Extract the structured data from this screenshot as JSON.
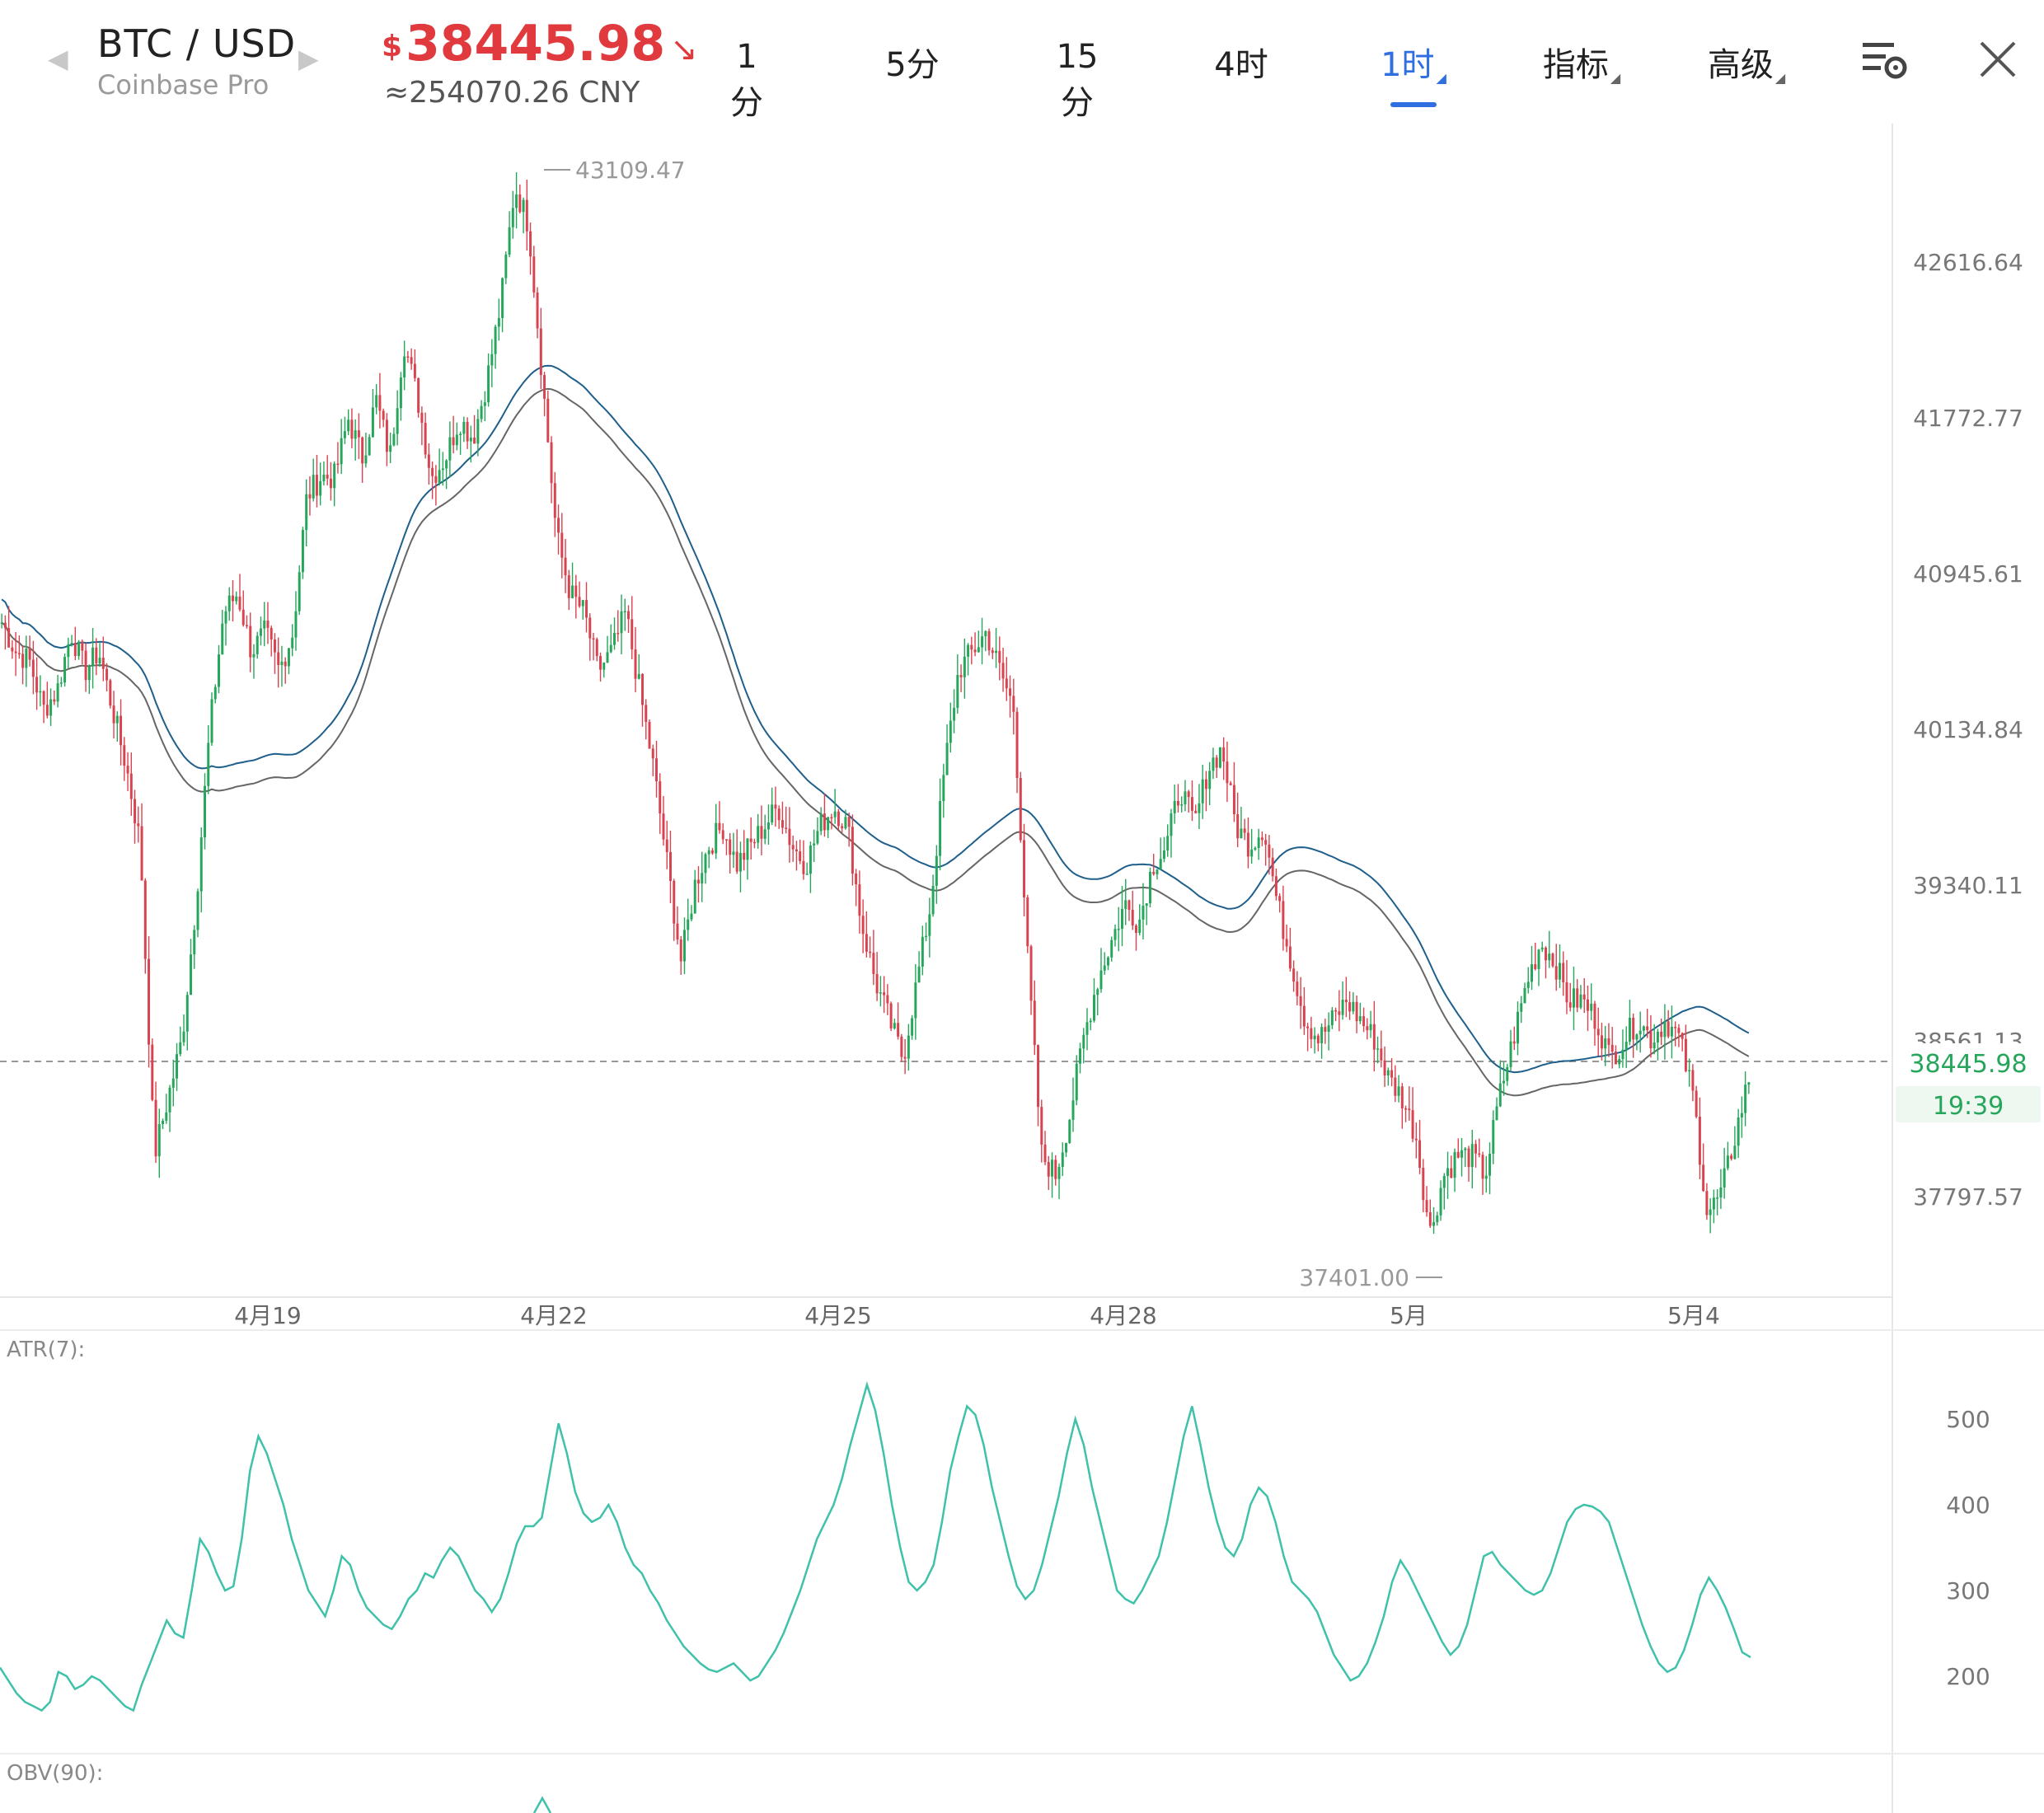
{
  "header": {
    "pair": "BTC / USD",
    "exchange": "Coinbase Pro",
    "price": "38445.98",
    "currency_symbol": "$",
    "price_direction": "down",
    "price_color": "#e0393e",
    "cny": "≈254070.26 CNY",
    "prev_icon": "left-triangle-icon",
    "next_icon": "right-triangle-icon"
  },
  "tabs": [
    {
      "label": "1分",
      "active": false,
      "dropdown": false
    },
    {
      "label": "5分",
      "active": false,
      "dropdown": false
    },
    {
      "label": "15分",
      "active": false,
      "dropdown": false
    },
    {
      "label": "4时",
      "active": false,
      "dropdown": false
    },
    {
      "label": "1时",
      "active": true,
      "dropdown": true
    },
    {
      "label": "指标",
      "active": false,
      "dropdown": true
    },
    {
      "label": "高级",
      "active": false,
      "dropdown": true
    }
  ],
  "toolbar": {
    "settings_icon": "chart-settings-icon",
    "close_icon": "close-icon"
  },
  "chart_data": {
    "type": "candlestick",
    "interval": "1时",
    "y_ticks": [
      "42616.64",
      "41772.77",
      "40945.61",
      "40134.84",
      "39340.11",
      "38561.13",
      "37797.57"
    ],
    "x_ticks": [
      "4月19",
      "4月22",
      "4月25",
      "4月28",
      "5月",
      "5月4"
    ],
    "high_label": "43109.47",
    "low_label": "37401.00",
    "last_price": "38445.98",
    "countdown": "19:39",
    "up_color": "#26a65b",
    "down_color": "#d8434f",
    "ma_colors": [
      "#1f5f8b",
      "#666666"
    ],
    "close_path": [
      40750,
      40600,
      40550,
      40300,
      40400,
      40700,
      40500,
      40600,
      40300,
      40000,
      39600,
      38000,
      38300,
      38600,
      39300,
      40200,
      40800,
      40900,
      40600,
      40700,
      40500,
      40700,
      41400,
      41500,
      41500,
      41800,
      41600,
      41900,
      41600,
      42200,
      41900,
      41500,
      41600,
      41800,
      41700,
      42000,
      42400,
      43000,
      42800,
      42000,
      41200,
      40900,
      40800,
      40500,
      40600,
      40800,
      40400,
      40000,
      39500,
      39000,
      39400,
      39600,
      39700,
      39500,
      39600,
      39700,
      39800,
      39600,
      39500,
      39700,
      39800,
      39700,
      39200,
      38900,
      38700,
      38500,
      38900,
      39300,
      40000,
      40500,
      40600,
      40700,
      40500,
      40300,
      39000,
      38000,
      37900,
      38200,
      38600,
      38900,
      39100,
      39300,
      39200,
      39500,
      39600,
      39900,
      39700,
      40000,
      40100,
      39700,
      39600,
      39700,
      39300,
      39000,
      38700,
      38600,
      38700,
      38800,
      38700,
      38600,
      38400,
      38300,
      38100,
      37600,
      37900,
      38000,
      38000,
      37900,
      38300,
      38600,
      38900,
      39100,
      39000,
      38800,
      38800,
      38700,
      38500,
      38600,
      38700,
      38600,
      38700,
      38600,
      38300,
      37700,
      37800,
      38100,
      38400
    ]
  },
  "indicators": [
    {
      "label": "ATR(7):",
      "y_ticks": [
        "500",
        "400",
        "300",
        "200"
      ],
      "color": "#3fc1aa",
      "values": [
        210,
        195,
        180,
        170,
        165,
        160,
        170,
        205,
        200,
        185,
        190,
        200,
        195,
        185,
        175,
        165,
        160,
        190,
        215,
        240,
        265,
        250,
        245,
        300,
        360,
        345,
        320,
        300,
        305,
        360,
        440,
        480,
        460,
        430,
        400,
        360,
        330,
        300,
        285,
        270,
        300,
        340,
        330,
        300,
        280,
        270,
        260,
        255,
        270,
        290,
        300,
        320,
        315,
        335,
        350,
        340,
        320,
        300,
        290,
        275,
        290,
        320,
        355,
        375,
        375,
        385,
        440,
        495,
        460,
        415,
        390,
        380,
        385,
        400,
        380,
        350,
        330,
        320,
        300,
        285,
        265,
        250,
        235,
        225,
        215,
        208,
        205,
        210,
        215,
        205,
        195,
        200,
        215,
        230,
        250,
        275,
        300,
        330,
        360,
        380,
        400,
        430,
        470,
        505,
        540,
        510,
        460,
        400,
        350,
        310,
        300,
        310,
        330,
        380,
        440,
        480,
        515,
        505,
        470,
        420,
        380,
        340,
        305,
        290,
        300,
        330,
        370,
        410,
        460,
        500,
        470,
        420,
        380,
        340,
        300,
        290,
        285,
        300,
        320,
        340,
        380,
        430,
        480,
        515,
        470,
        420,
        380,
        350,
        340,
        360,
        400,
        420,
        410,
        380,
        340,
        310,
        300,
        290,
        275,
        250,
        225,
        210,
        195,
        200,
        215,
        240,
        270,
        310,
        335,
        320,
        300,
        280,
        260,
        240,
        225,
        235,
        260,
        300,
        340,
        345,
        330,
        320,
        310,
        300,
        295,
        300,
        320,
        350,
        380,
        395,
        400,
        398,
        392,
        380,
        350,
        320,
        290,
        260,
        235,
        215,
        205,
        210,
        230,
        260,
        295,
        315,
        300,
        280,
        255,
        228,
        222
      ]
    },
    {
      "label": "OBV(90):"
    }
  ]
}
